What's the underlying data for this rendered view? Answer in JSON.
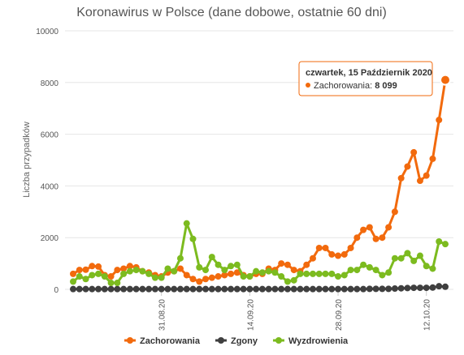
{
  "chart_data": {
    "type": "line",
    "title": "Koronawirus w Polsce (dane dobowe, ostatnie 60 dni)",
    "xlabel": "",
    "ylabel": "Liczba przypadków",
    "ylim": [
      0,
      10000
    ],
    "yticks": [
      "0",
      "2000",
      "4000",
      "6000",
      "8000",
      "10000"
    ],
    "xticks": [
      {
        "index": 14,
        "label": "31.08.20"
      },
      {
        "index": 28,
        "label": "14.09.20"
      },
      {
        "index": 42,
        "label": "28.09.20"
      },
      {
        "index": 56,
        "label": "12.10.20"
      }
    ],
    "grid": true,
    "legend_position": "bottom",
    "series": [
      {
        "name": "Zachorowania",
        "color": "#f26a0d",
        "values": [
          600,
          750,
          760,
          900,
          880,
          550,
          500,
          750,
          800,
          900,
          850,
          700,
          650,
          550,
          500,
          650,
          700,
          800,
          550,
          400,
          300,
          400,
          450,
          500,
          550,
          600,
          650,
          550,
          500,
          600,
          600,
          800,
          750,
          1000,
          950,
          750,
          700,
          950,
          1200,
          1600,
          1600,
          1350,
          1300,
          1350,
          1600,
          2000,
          2300,
          2400,
          1950,
          2000,
          2400,
          3000,
          4300,
          4750,
          5300,
          4200,
          4400,
          5050,
          6550,
          8099
        ]
      },
      {
        "name": "Zgony",
        "color": "#3f3f3f",
        "values": [
          10,
          10,
          10,
          10,
          10,
          10,
          10,
          10,
          10,
          10,
          10,
          10,
          10,
          10,
          10,
          10,
          10,
          10,
          10,
          10,
          10,
          10,
          10,
          10,
          10,
          10,
          10,
          10,
          10,
          10,
          10,
          10,
          10,
          10,
          10,
          10,
          10,
          10,
          10,
          10,
          10,
          10,
          10,
          10,
          10,
          10,
          10,
          20,
          20,
          20,
          20,
          30,
          40,
          50,
          60,
          60,
          60,
          70,
          120,
          100
        ]
      },
      {
        "name": "Wyzdrowienia",
        "color": "#7cbb1f",
        "values": [
          300,
          500,
          400,
          550,
          600,
          500,
          250,
          250,
          600,
          700,
          750,
          700,
          600,
          450,
          450,
          800,
          700,
          1200,
          2550,
          1950,
          850,
          750,
          1250,
          950,
          750,
          900,
          950,
          500,
          500,
          700,
          650,
          700,
          650,
          500,
          300,
          350,
          600,
          600,
          600,
          600,
          600,
          600,
          500,
          550,
          750,
          750,
          950,
          850,
          750,
          550,
          650,
          1200,
          1200,
          1400,
          1100,
          1300,
          900,
          800,
          1850,
          1750
        ]
      }
    ],
    "tooltip": {
      "title": "czwartek, 15 Październik 2020",
      "series": "Zachorowania",
      "value": "8 099"
    }
  }
}
